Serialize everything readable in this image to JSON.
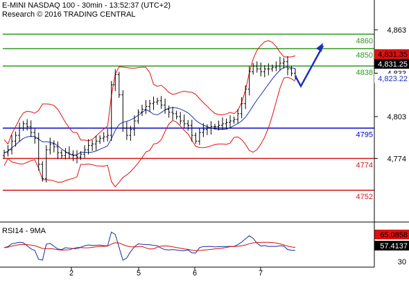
{
  "header": {
    "title": "E-MINI NASDAQ 100 - 30min - 13:52:37 (UTC+2)",
    "research": "Research © 2016 TRADING CENTRAL"
  },
  "rsi": {
    "label": "RSI14 - 9MA",
    "value_1": "65.0858",
    "value_2": "57.4137",
    "tick": "30"
  },
  "colors": {
    "green": "#2e9a1f",
    "blue": "#0000cc",
    "red": "#d81818",
    "bb_red": "#e01010",
    "ma_blue": "#1f30b8",
    "arrow": "#1a2fbf",
    "candle": "#000000",
    "price_tag_bg": "#000000",
    "target_tag_bg": "#1a2fbf",
    "resist_tag_bg": "#e01010"
  },
  "chart_data": {
    "type": "candlestick",
    "title": "E-MINI NASDAQ 100 - 30min - 13:52:37 (UTC+2)",
    "y_ticks": [
      "4,863",
      "4,833",
      "4,803",
      "4,774"
    ],
    "x_ticks": [
      "2",
      "5",
      "6",
      "7"
    ],
    "current_price": "4,831.25",
    "resistance_tag": "4,831.35",
    "target_tag": "4,823.22",
    "levels": [
      {
        "label": "4860",
        "value": 4860,
        "color": "green"
      },
      {
        "label": "4850",
        "value": 4850,
        "color": "green"
      },
      {
        "label": "4838",
        "value": 4838,
        "color": "green"
      },
      {
        "label": "4795",
        "value": 4795,
        "color": "blue"
      },
      {
        "label": "4774",
        "value": 4774,
        "color": "red"
      },
      {
        "label": "4752",
        "value": 4752,
        "color": "red"
      }
    ],
    "price_series": [
      4778,
      4780,
      4786,
      4790,
      4795,
      4798,
      4796,
      4792,
      4788,
      4770,
      4760,
      4780,
      4784,
      4782,
      4778,
      4776,
      4778,
      4777,
      4776,
      4775,
      4777,
      4780,
      4783,
      4784,
      4786,
      4788,
      4789,
      4790,
      4825,
      4832,
      4818,
      4795,
      4790,
      4794,
      4800,
      4806,
      4808,
      4810,
      4812,
      4813,
      4814,
      4811,
      4808,
      4806,
      4805,
      4803,
      4800,
      4798,
      4797,
      4790,
      4786,
      4792,
      4794,
      4795,
      4796,
      4796,
      4797,
      4798,
      4799,
      4800,
      4801,
      4805,
      4812,
      4822,
      4834,
      4838,
      4836,
      4834,
      4836,
      4836,
      4837,
      4838,
      4840,
      4841,
      4836,
      4833,
      4831
    ],
    "forecast": [
      4831,
      4824,
      4852
    ]
  }
}
